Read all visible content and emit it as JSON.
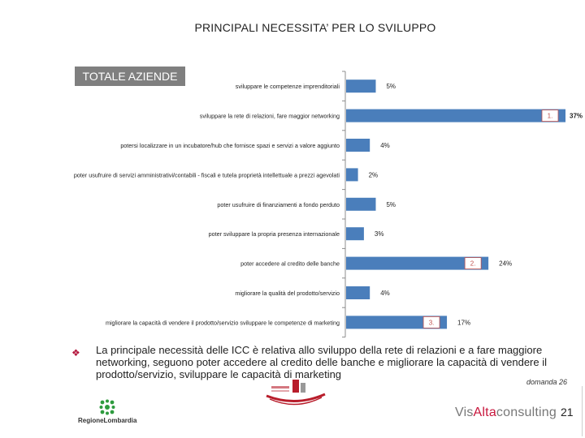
{
  "page": {
    "title": "PRINCIPALI NECESSITA’ PER LO SVILUPPO",
    "badge": "TOTALE AZIENDE",
    "note": "La principale necessità delle ICC è relativa allo sviluppo della rete di relazioni e a fare maggiore networking, seguono poter accedere al credito delle banche e migliorare la capacità di vendere il prodotto/servizio, sviluppare le capacità di marketing",
    "question_ref": "domanda 26",
    "page_number": "21",
    "logo_left_text": "RegioneLombardia",
    "logo_right_text_a": "Vis",
    "logo_right_text_b": "Alta",
    "logo_right_text_c": "consulting"
  },
  "colors": {
    "bar": "#4a7ebb",
    "bullet": "#b3163c",
    "logo_green": "#2e9b3e",
    "logo_red": "#b81d2b"
  },
  "chart_data": {
    "type": "bar",
    "orientation": "horizontal",
    "categories": [
      "sviluppare le competenze imprenditoriali",
      "sviluppare la rete di relazioni, fare maggior networking",
      "potersi localizzare in un incubatore/hub che fornisce spazi e servizi a valore aggiunto",
      "poter usufruire di servizi amministrativi/contabili - fiscali e tutela proprietà intellettuale a prezzi agevolati",
      "poter usufruire di finanziamenti a fondo perduto",
      "poter sviluppare la propria presenza internazionale",
      "poter accedere al credito delle banche",
      "migliorare la qualità del prodotto/servizio",
      "migliorare la capacità di vendere il prodotto/servizio sviluppare le competenze di marketing"
    ],
    "values": [
      5,
      37,
      4,
      2,
      5,
      3,
      24,
      4,
      17
    ],
    "value_labels": [
      "5%",
      "37%",
      "4%",
      "2%",
      "5%",
      "3%",
      "24%",
      "4%",
      "17%"
    ],
    "rank_labels": [
      "",
      "1.",
      "",
      "",
      "",
      "",
      "2.",
      "",
      "3."
    ],
    "xlim": [
      0,
      37
    ]
  }
}
